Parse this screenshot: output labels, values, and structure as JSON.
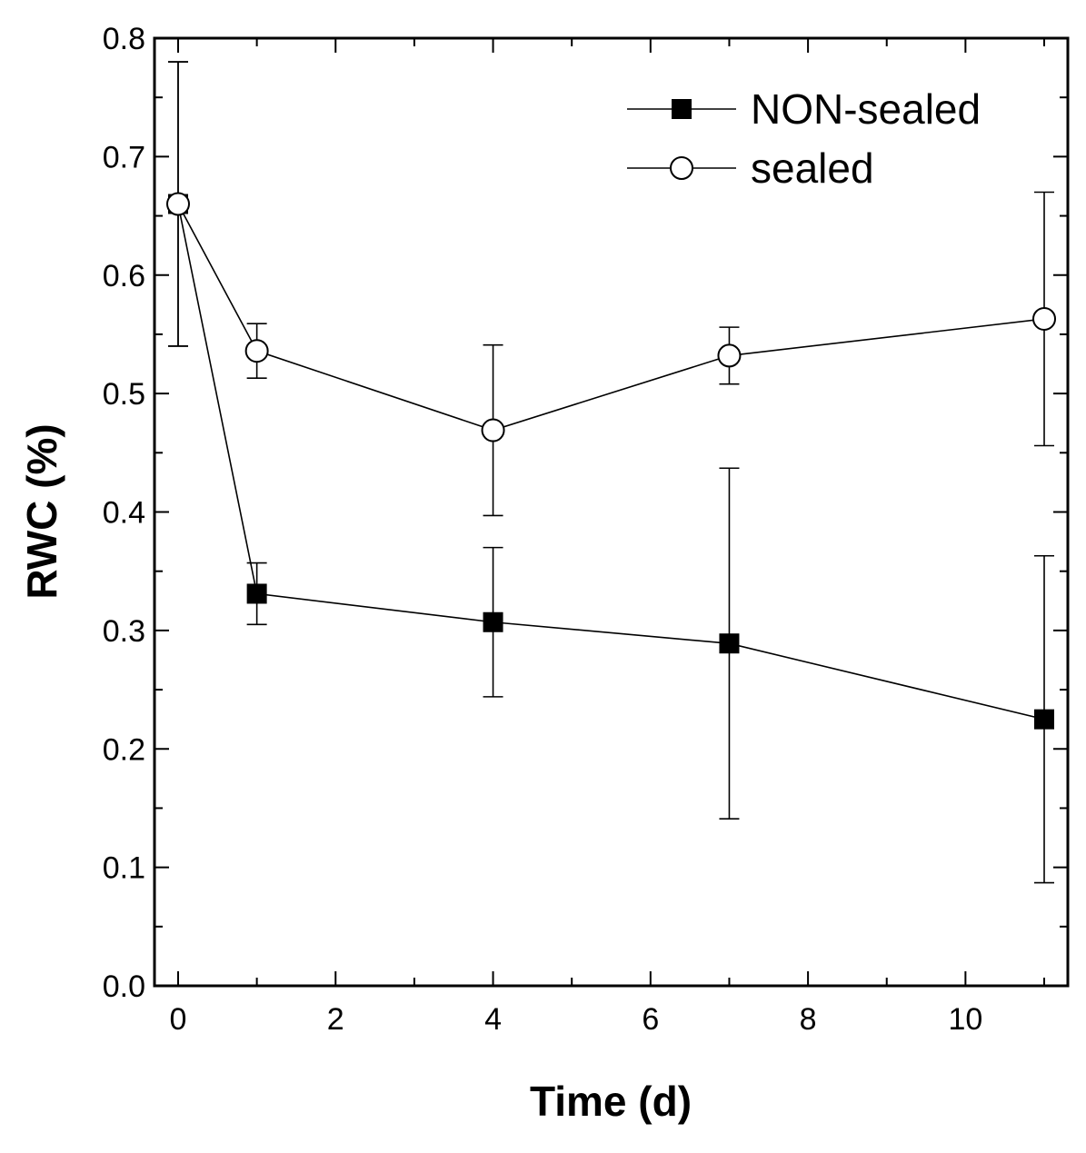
{
  "chart_data": {
    "type": "line",
    "title": "",
    "xlabel": "Time (d)",
    "ylabel": "RWC (%)",
    "xlim": [
      -0.3,
      11.3
    ],
    "ylim": [
      0.0,
      0.8
    ],
    "xticks": [
      0,
      2,
      4,
      6,
      8,
      10
    ],
    "xtick_labels": [
      "0",
      "2",
      "4",
      "6",
      "8",
      "10"
    ],
    "yticks": [
      0.0,
      0.1,
      0.2,
      0.3,
      0.4,
      0.5,
      0.6,
      0.7,
      0.8
    ],
    "ytick_labels": [
      "0.0",
      "0.1",
      "0.2",
      "0.3",
      "0.4",
      "0.5",
      "0.6",
      "0.7",
      "0.8"
    ],
    "grid": false,
    "legend_position": "top-right",
    "x": [
      0,
      1,
      4,
      7,
      11
    ],
    "series": [
      {
        "name": "NON-sealed",
        "marker": "filled-square",
        "values": [
          0.66,
          0.331,
          0.307,
          0.289,
          0.225
        ],
        "errors": [
          0.12,
          0.026,
          0.063,
          0.148,
          0.138
        ]
      },
      {
        "name": "sealed",
        "marker": "open-circle",
        "values": [
          0.66,
          0.536,
          0.469,
          0.532,
          0.563
        ],
        "errors": [
          0.12,
          0.023,
          0.072,
          0.024,
          0.107
        ]
      }
    ]
  }
}
